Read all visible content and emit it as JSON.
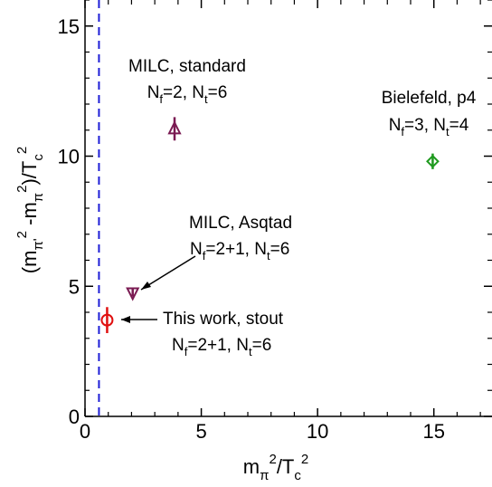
{
  "chart_data": {
    "type": "scatter",
    "xlabel": {
      "main": "m",
      "sub1": "π",
      "sup1": "2",
      "mid": "/T",
      "sub2": "c",
      "sup2": "2"
    },
    "ylabel": {
      "p1": "(m",
      "sub1": "π'",
      "sup1": "2",
      "p2": " -m",
      "sub2": "π",
      "sup2": "2",
      "p3": ")/T",
      "sub3": "c",
      "sup3": "2"
    },
    "xlim": [
      0,
      17.5
    ],
    "ylim": [
      0,
      16
    ],
    "xticks": [
      0,
      5,
      10,
      15
    ],
    "yticks": [
      0,
      5,
      10,
      15
    ],
    "vline": {
      "x": 0.6,
      "color": "#1f1fd6",
      "style": "dashed"
    },
    "points": [
      {
        "id": "milc-standard",
        "x": 3.85,
        "y": 11.05,
        "yerr": 0.45,
        "marker": "triangle-up",
        "color": "#7a1a52",
        "label": {
          "line1": "MILC, standard",
          "l2a": "N",
          "l2b": "f",
          "l2c": "=2, N",
          "l2d": "t",
          "l2e": "=6"
        }
      },
      {
        "id": "bielefeld-p4",
        "x": 14.95,
        "y": 9.8,
        "yerr": 0.3,
        "marker": "diamond",
        "color": "#1f9a1f",
        "label": {
          "line1": "Bielefeld, p4",
          "l2a": "N",
          "l2b": "f",
          "l2c": "=3, N",
          "l2d": "t",
          "l2e": "=4"
        }
      },
      {
        "id": "milc-asqtad",
        "x": 2.05,
        "y": 4.75,
        "yerr": 0.15,
        "marker": "triangle-down",
        "color": "#7a1a52",
        "label": {
          "line1": "MILC, Asqtad",
          "l2a": "N",
          "l2b": "f",
          "l2c": "=2+1, N",
          "l2d": "t",
          "l2e": "=6"
        }
      },
      {
        "id": "this-work-stout",
        "x": 0.95,
        "y": 3.7,
        "yerr": 0.5,
        "marker": "circle",
        "color": "#e01010",
        "label": {
          "line1": "This work, stout",
          "l2a": "N",
          "l2b": "f",
          "l2c": "=2+1, N",
          "l2d": "t",
          "l2e": "=6"
        }
      }
    ],
    "grid": false,
    "legend": "none"
  }
}
